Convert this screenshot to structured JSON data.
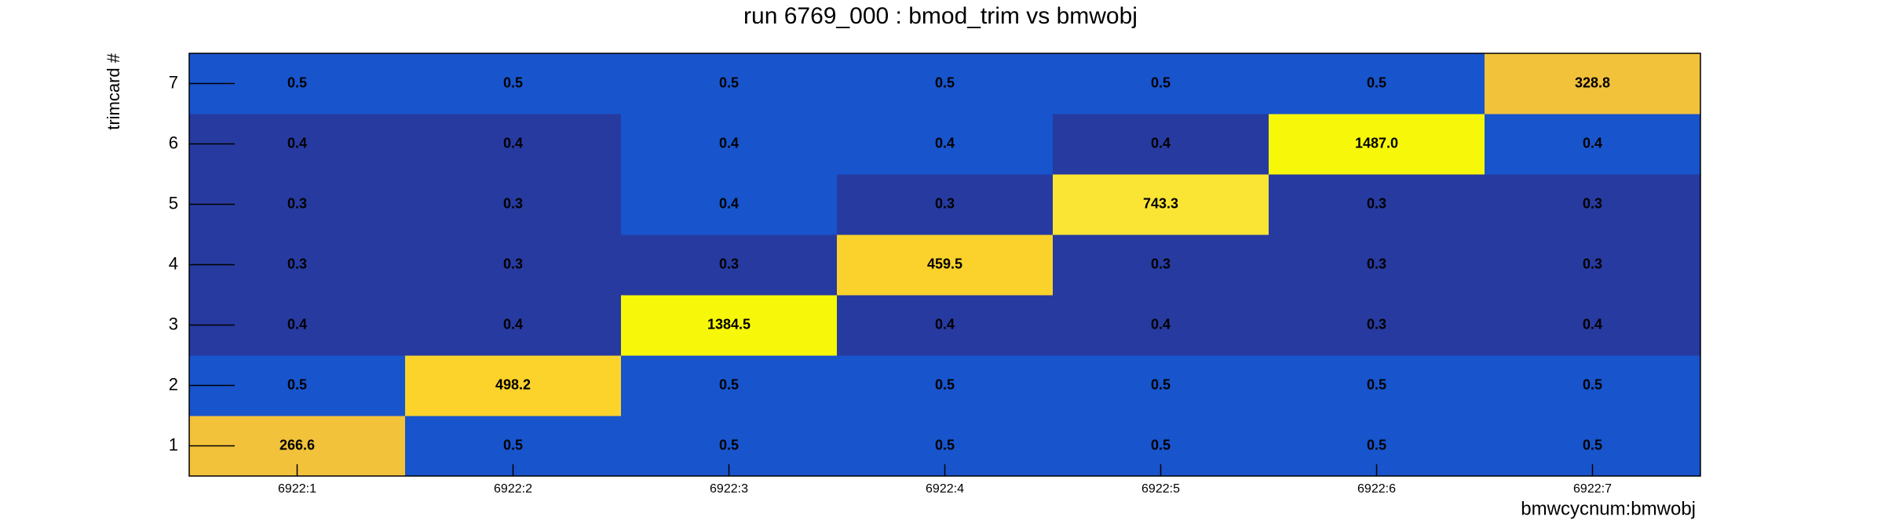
{
  "chart_data": {
    "type": "heatmap",
    "title": "run 6769_000 : bmod_trim vs bmwobj",
    "x_label": "bmwcycnum:bmwobj",
    "y_label": "trimcard #",
    "x_categories": [
      "6922:1",
      "6922:2",
      "6922:3",
      "6922:4",
      "6922:5",
      "6922:6",
      "6922:7"
    ],
    "y_categories": [
      "1",
      "2",
      "3",
      "4",
      "5",
      "6",
      "7"
    ],
    "values": [
      [
        266.6,
        0.5,
        0.5,
        0.5,
        0.5,
        0.5,
        0.5
      ],
      [
        0.5,
        498.2,
        0.5,
        0.5,
        0.5,
        0.5,
        0.5
      ],
      [
        0.4,
        0.4,
        1384.5,
        0.4,
        0.4,
        0.3,
        0.4
      ],
      [
        0.3,
        0.3,
        0.3,
        459.5,
        0.3,
        0.3,
        0.3
      ],
      [
        0.3,
        0.3,
        0.4,
        0.3,
        743.3,
        0.3,
        0.3
      ],
      [
        0.4,
        0.4,
        0.4,
        0.4,
        0.4,
        1487.0,
        0.4
      ],
      [
        0.5,
        0.5,
        0.5,
        0.5,
        0.5,
        0.5,
        328.8
      ]
    ],
    "value_labels": [
      [
        "266.6",
        "0.5",
        "0.5",
        "0.5",
        "0.5",
        "0.5",
        "0.5"
      ],
      [
        "0.5",
        "498.2",
        "0.5",
        "0.5",
        "0.5",
        "0.5",
        "0.5"
      ],
      [
        "0.4",
        "0.4",
        "1384.5",
        "0.4",
        "0.4",
        "0.3",
        "0.4"
      ],
      [
        "0.3",
        "0.3",
        "0.3",
        "459.5",
        "0.3",
        "0.3",
        "0.3"
      ],
      [
        "0.3",
        "0.3",
        "0.4",
        "0.3",
        "743.3",
        "0.3",
        "0.3"
      ],
      [
        "0.4",
        "0.4",
        "0.4",
        "0.4",
        "0.4",
        "1487.0",
        "0.4"
      ],
      [
        "0.5",
        "0.5",
        "0.5",
        "0.5",
        "0.5",
        "0.5",
        "328.8"
      ]
    ],
    "colors": [
      [
        "#f2c23b",
        "#1854cc",
        "#1854cc",
        "#1854cc",
        "#1854cc",
        "#1854cc",
        "#1854cc"
      ],
      [
        "#1854cc",
        "#fbd32b",
        "#1854cc",
        "#1854cc",
        "#1854cc",
        "#1854cc",
        "#1854cc"
      ],
      [
        "#273a9f",
        "#273a9f",
        "#f7f70a",
        "#273a9f",
        "#273a9f",
        "#273a9f",
        "#273a9f"
      ],
      [
        "#273a9f",
        "#273a9f",
        "#273a9f",
        "#fad22b",
        "#273a9f",
        "#273a9f",
        "#273a9f"
      ],
      [
        "#273a9f",
        "#273a9f",
        "#1854cc",
        "#273a9f",
        "#fbe534",
        "#273a9f",
        "#273a9f"
      ],
      [
        "#273a9f",
        "#273a9f",
        "#1854cc",
        "#1854cc",
        "#273a9f",
        "#f7f70a",
        "#1854cc"
      ],
      [
        "#1854cc",
        "#1854cc",
        "#1854cc",
        "#1854cc",
        "#1854cc",
        "#1854cc",
        "#f2c23b"
      ]
    ]
  }
}
